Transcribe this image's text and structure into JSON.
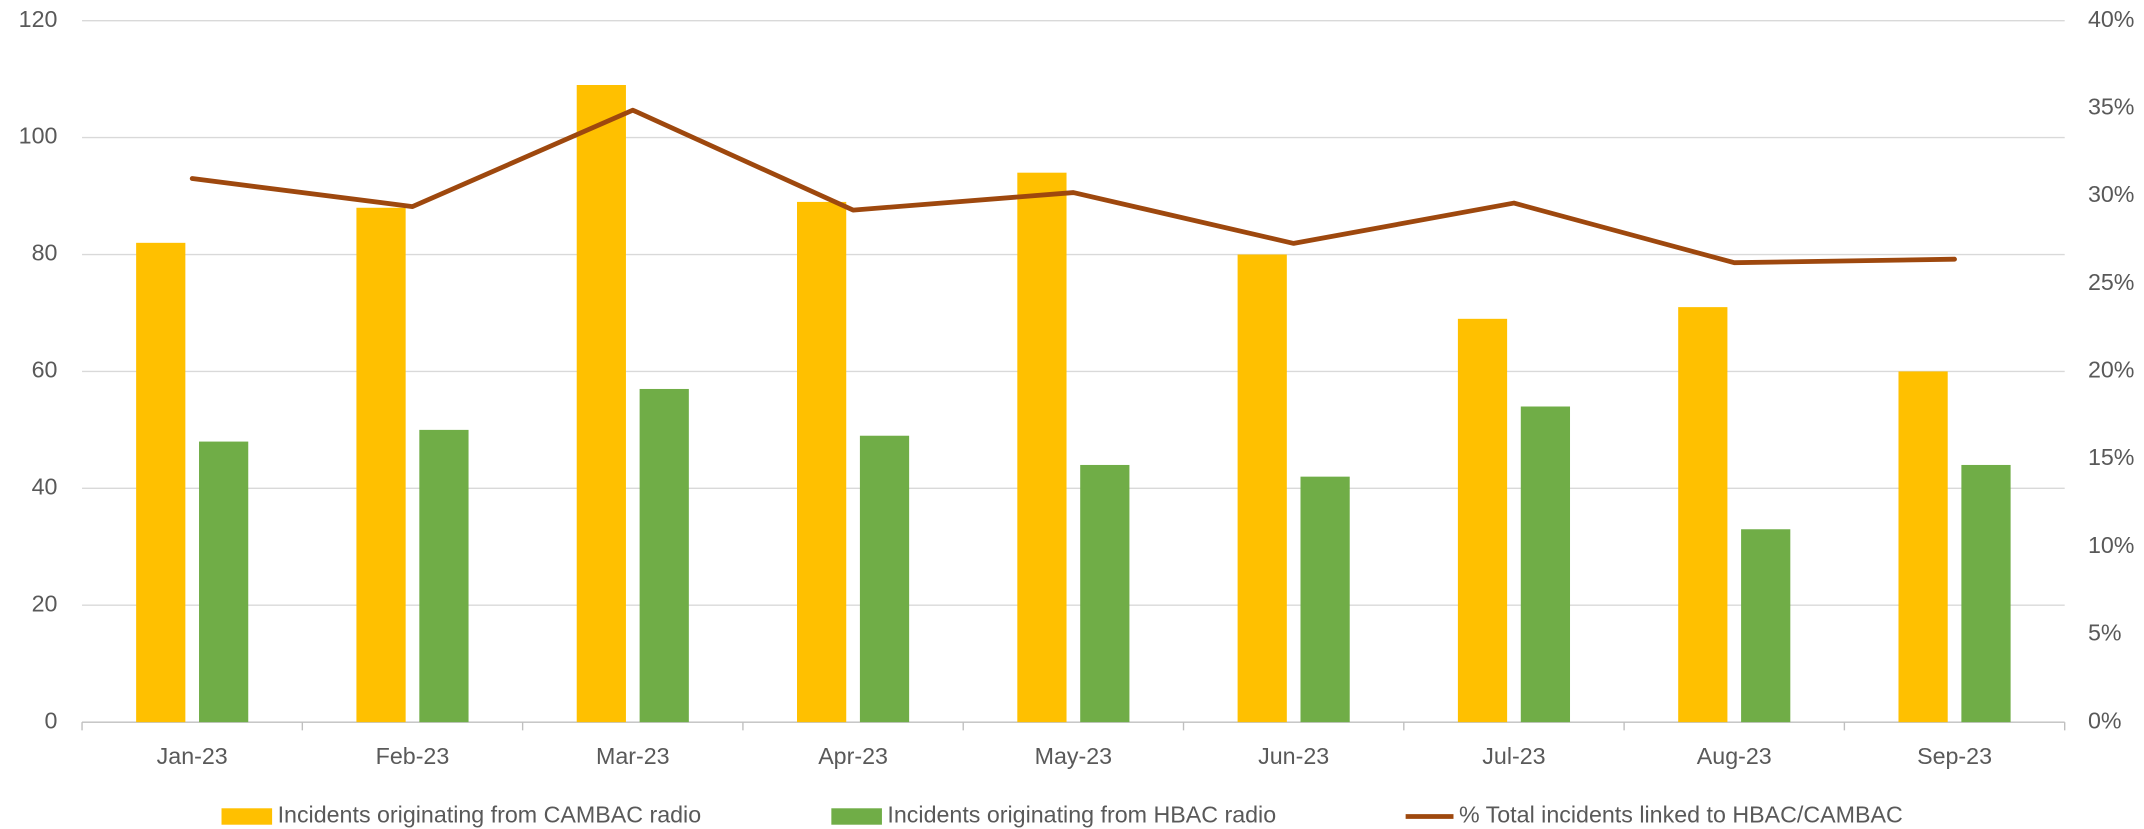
{
  "chart_data": {
    "type": "bar-line",
    "categories": [
      "Jan-23",
      "Feb-23",
      "Mar-23",
      "Apr-23",
      "May-23",
      "Jun-23",
      "Jul-23",
      "Aug-23",
      "Sep-23"
    ],
    "series": [
      {
        "name": "Incidents originating from CAMBAC radio",
        "type": "bar",
        "color": "#ffc000",
        "values": [
          82,
          88,
          109,
          89,
          94,
          80,
          69,
          71,
          60
        ]
      },
      {
        "name": "Incidents originating from HBAC radio",
        "type": "bar",
        "color": "#70ad47",
        "values": [
          48,
          50,
          57,
          49,
          44,
          42,
          54,
          33,
          44
        ]
      },
      {
        "name": "% Total incidents linked to HBAC/CAMBAC",
        "type": "line",
        "axis": "y2",
        "color": "#9e480e",
        "values": [
          31,
          29.4,
          34.9,
          29.2,
          30.2,
          27.3,
          29.6,
          26.2,
          26.4
        ]
      }
    ],
    "ylim": [
      0,
      120
    ],
    "yticks": [
      0,
      20,
      40,
      60,
      80,
      100,
      120
    ],
    "y2lim": [
      0,
      40
    ],
    "y2ticks": [
      {
        "value": 0,
        "label": "0%"
      },
      {
        "value": 5,
        "label": "5%"
      },
      {
        "value": 10,
        "label": "10%"
      },
      {
        "value": 15,
        "label": "15%"
      },
      {
        "value": 20,
        "label": "20%"
      },
      {
        "value": 25,
        "label": "25%"
      },
      {
        "value": 30,
        "label": "30%"
      },
      {
        "value": 35,
        "label": "35%"
      },
      {
        "value": 40,
        "label": "40%"
      }
    ],
    "grid": true,
    "legend": "bottom"
  }
}
